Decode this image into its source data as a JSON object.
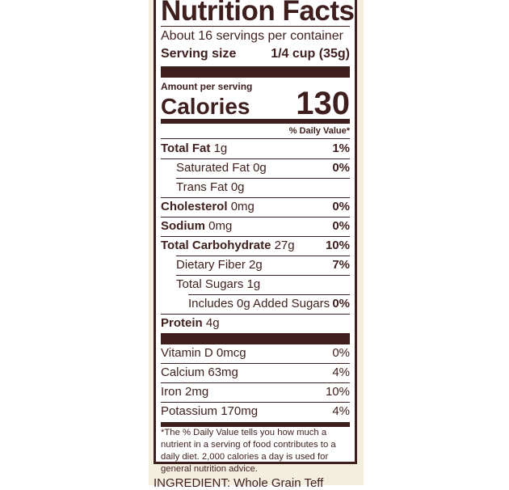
{
  "title": "Nutrition Facts",
  "servings": "About 16 servings per container",
  "serving_size_label": "Serving size",
  "serving_size_value": "1/4 cup (35g)",
  "amount_per_serving": "Amount per serving",
  "calories_label": "Calories",
  "calories_value": "130",
  "dv_header": "% Daily Value*",
  "nutrients": [
    {
      "name": "Total Fat",
      "amount": "1g",
      "dv": "1%"
    },
    {
      "name": "Saturated Fat",
      "amount": "0g",
      "dv": "0%"
    },
    {
      "name": "Trans Fat",
      "amount": "0g",
      "dv": ""
    },
    {
      "name": "Cholesterol",
      "amount": "0mg",
      "dv": "0%"
    },
    {
      "name": "Sodium",
      "amount": "0mg",
      "dv": "0%"
    },
    {
      "name": "Total Carbohydrate",
      "amount": "27g",
      "dv": "10%"
    },
    {
      "name": "Dietary Fiber",
      "amount": "2g",
      "dv": "7%"
    },
    {
      "name": "Total Sugars",
      "amount": "1g",
      "dv": ""
    },
    {
      "name": "Includes 0g Added Sugars",
      "amount": "",
      "dv": "0%"
    },
    {
      "name": "Protein",
      "amount": "4g",
      "dv": ""
    }
  ],
  "vitamins": [
    {
      "name": "Vitamin D",
      "amount": "0mcg",
      "dv": "0%"
    },
    {
      "name": "Calcium",
      "amount": "63mg",
      "dv": "4%"
    },
    {
      "name": "Iron",
      "amount": "2mg",
      "dv": "10%"
    },
    {
      "name": "Potassium",
      "amount": "170mg",
      "dv": "4%"
    }
  ],
  "footnote": "*The % Daily Value tells you how much a nutrient in a serving of food contributes to a daily diet. 2,000 calories a day is used for general nutrition advice.",
  "ingredient": "INGREDIENT: Whole Grain Teff",
  "colors": {
    "text": "#3e1f1d",
    "panel": "#f4eedf"
  }
}
